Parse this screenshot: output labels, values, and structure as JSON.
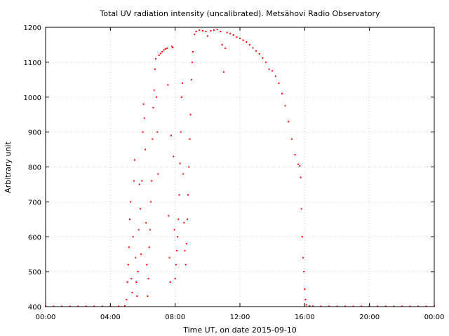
{
  "chart_data": {
    "type": "scatter",
    "title": "Total UV radiation intensity (uncalibrated). Metsähovi Radio Observatory",
    "xlabel": "Time UT, on date 2015-09-10",
    "ylabel": "Arbitrary unit",
    "xlim": [
      "00:00",
      "24:00"
    ],
    "ylim": [
      400,
      1200
    ],
    "x_unit": "hours UT",
    "grid": true,
    "legend": "none",
    "x_ticks": [
      "00:00",
      "04:00",
      "08:00",
      "12:00",
      "16:00",
      "20:00",
      "00:00"
    ],
    "y_ticks": [
      "400",
      "500",
      "600",
      "700",
      "800",
      "900",
      "1000",
      "1100",
      "1200"
    ],
    "colors": {
      "series": "#ff0000",
      "grid": "#c8c8c8",
      "axis": "#000000"
    },
    "series": [
      {
        "values": [
          [
            0.0,
            401
          ],
          [
            0.5,
            401
          ],
          [
            1.0,
            401
          ],
          [
            1.5,
            401
          ],
          [
            2.0,
            401
          ],
          [
            2.5,
            401
          ],
          [
            3.0,
            401
          ],
          [
            3.5,
            401
          ],
          [
            4.0,
            401
          ],
          [
            4.5,
            401
          ],
          [
            4.9,
            402
          ],
          [
            5.0,
            420
          ],
          [
            5.05,
            470
          ],
          [
            5.1,
            520
          ],
          [
            5.15,
            570
          ],
          [
            5.2,
            650
          ],
          [
            5.25,
            700
          ],
          [
            5.3,
            480
          ],
          [
            5.35,
            440
          ],
          [
            5.4,
            600
          ],
          [
            5.45,
            760
          ],
          [
            5.5,
            820
          ],
          [
            5.55,
            540
          ],
          [
            5.6,
            470
          ],
          [
            5.65,
            430
          ],
          [
            5.7,
            500
          ],
          [
            5.75,
            620
          ],
          [
            5.8,
            750
          ],
          [
            5.85,
            680
          ],
          [
            5.9,
            550
          ],
          [
            5.95,
            760
          ],
          [
            6.0,
            900
          ],
          [
            6.05,
            980
          ],
          [
            6.1,
            940
          ],
          [
            6.15,
            850
          ],
          [
            6.2,
            640
          ],
          [
            6.25,
            520
          ],
          [
            6.3,
            430
          ],
          [
            6.35,
            480
          ],
          [
            6.4,
            570
          ],
          [
            6.45,
            620
          ],
          [
            6.5,
            700
          ],
          [
            6.55,
            760
          ],
          [
            6.6,
            880
          ],
          [
            6.65,
            970
          ],
          [
            6.7,
            1020
          ],
          [
            6.75,
            1080
          ],
          [
            6.8,
            1110
          ],
          [
            6.85,
            1000
          ],
          [
            6.9,
            900
          ],
          [
            6.95,
            780
          ],
          [
            7.0,
            1120
          ],
          [
            7.1,
            1125
          ],
          [
            7.2,
            1130
          ],
          [
            7.3,
            1135
          ],
          [
            7.4,
            1138
          ],
          [
            7.5,
            1140
          ],
          [
            7.55,
            1035
          ],
          [
            7.6,
            660
          ],
          [
            7.65,
            540
          ],
          [
            7.7,
            470
          ],
          [
            7.75,
            890
          ],
          [
            7.8,
            1145
          ],
          [
            7.85,
            1142
          ],
          [
            7.9,
            830
          ],
          [
            7.95,
            620
          ],
          [
            8.0,
            480
          ],
          [
            8.05,
            520
          ],
          [
            8.1,
            560
          ],
          [
            8.15,
            600
          ],
          [
            8.2,
            650
          ],
          [
            8.25,
            720
          ],
          [
            8.3,
            810
          ],
          [
            8.35,
            900
          ],
          [
            8.4,
            1000
          ],
          [
            8.45,
            1040
          ],
          [
            8.5,
            780
          ],
          [
            8.55,
            640
          ],
          [
            8.6,
            560
          ],
          [
            8.65,
            520
          ],
          [
            8.7,
            580
          ],
          [
            8.75,
            650
          ],
          [
            8.8,
            720
          ],
          [
            8.85,
            800
          ],
          [
            8.9,
            880
          ],
          [
            8.95,
            950
          ],
          [
            9.0,
            1050
          ],
          [
            9.05,
            1100
          ],
          [
            9.1,
            1130
          ],
          [
            9.2,
            1180
          ],
          [
            9.3,
            1188
          ],
          [
            9.5,
            1192
          ],
          [
            9.7,
            1190
          ],
          [
            9.9,
            1188
          ],
          [
            10.0,
            1175
          ],
          [
            10.2,
            1190
          ],
          [
            10.4,
            1192
          ],
          [
            10.6,
            1194
          ],
          [
            10.8,
            1188
          ],
          [
            10.9,
            1150
          ],
          [
            11.0,
            1072
          ],
          [
            11.1,
            1140
          ],
          [
            11.2,
            1185
          ],
          [
            11.4,
            1182
          ],
          [
            11.6,
            1178
          ],
          [
            11.8,
            1172
          ],
          [
            12.0,
            1168
          ],
          [
            12.2,
            1163
          ],
          [
            12.4,
            1158
          ],
          [
            12.6,
            1150
          ],
          [
            12.8,
            1141
          ],
          [
            13.0,
            1132
          ],
          [
            13.2,
            1124
          ],
          [
            13.4,
            1112
          ],
          [
            13.6,
            1100
          ],
          [
            13.8,
            1080
          ],
          [
            14.0,
            1075
          ],
          [
            14.2,
            1060
          ],
          [
            14.4,
            1040
          ],
          [
            14.6,
            1010
          ],
          [
            14.8,
            975
          ],
          [
            15.0,
            930
          ],
          [
            15.2,
            880
          ],
          [
            15.4,
            835
          ],
          [
            15.6,
            808
          ],
          [
            15.7,
            803
          ],
          [
            15.75,
            770
          ],
          [
            15.8,
            680
          ],
          [
            15.85,
            600
          ],
          [
            15.9,
            540
          ],
          [
            15.95,
            500
          ],
          [
            16.0,
            450
          ],
          [
            16.05,
            420
          ],
          [
            16.1,
            405
          ],
          [
            16.3,
            402
          ],
          [
            16.5,
            401
          ],
          [
            17.0,
            401
          ],
          [
            17.5,
            401
          ],
          [
            18.0,
            401
          ],
          [
            18.5,
            401
          ],
          [
            19.0,
            401
          ],
          [
            19.5,
            401
          ],
          [
            20.0,
            401
          ],
          [
            20.5,
            401
          ],
          [
            21.0,
            401
          ],
          [
            21.5,
            401
          ],
          [
            22.0,
            401
          ],
          [
            22.5,
            401
          ],
          [
            23.0,
            401
          ],
          [
            23.5,
            401
          ],
          [
            24.0,
            401
          ]
        ]
      }
    ]
  }
}
